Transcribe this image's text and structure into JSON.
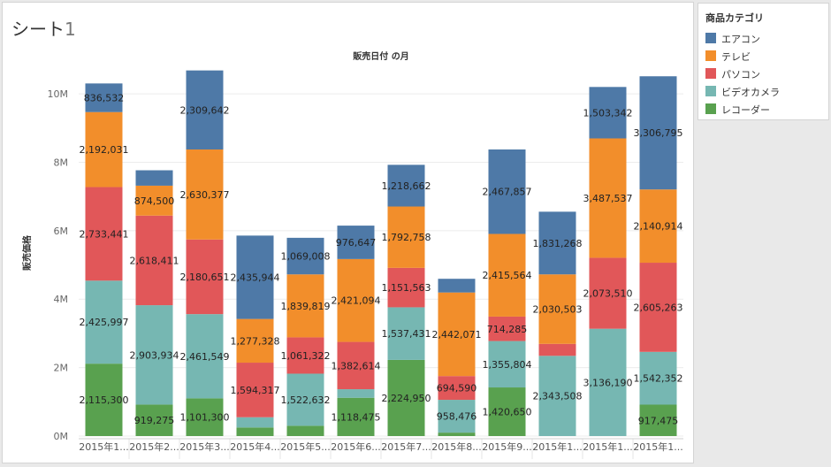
{
  "sheet": {
    "title": "シート",
    "title_number": "1"
  },
  "legend": {
    "title": "商品カテゴリ",
    "items": [
      {
        "label": "エアコン",
        "color": "#4e79a7"
      },
      {
        "label": "テレビ",
        "color": "#f28e2b"
      },
      {
        "label": "パソコン",
        "color": "#e15759"
      },
      {
        "label": "ビデオカメラ",
        "color": "#76b7b2"
      },
      {
        "label": "レコーダー",
        "color": "#59a14f"
      }
    ]
  },
  "chart_data": {
    "type": "bar",
    "stacked": true,
    "title": "販売日付 の月",
    "xlabel": "",
    "ylabel": "販売価格",
    "ylim": [
      0,
      10700000
    ],
    "yticks": [
      {
        "value": 0,
        "label": "0M"
      },
      {
        "value": 2000000,
        "label": "2M"
      },
      {
        "value": 4000000,
        "label": "4M"
      },
      {
        "value": 6000000,
        "label": "6M"
      },
      {
        "value": 8000000,
        "label": "8M"
      },
      {
        "value": 10000000,
        "label": "10M"
      }
    ],
    "categories": [
      "2015年1...",
      "2015年2...",
      "2015年3...",
      "2015年4...",
      "2015年5...",
      "2015年6...",
      "2015年7...",
      "2015年8...",
      "2015年9...",
      "2015年1...",
      "2015年1...",
      "2015年1..."
    ],
    "series": [
      {
        "name": "レコーダー",
        "color": "#59a14f",
        "values": [
          2115300,
          919275,
          1101300,
          250000,
          300000,
          1118475,
          2224950,
          100000,
          1420650,
          0,
          0,
          917475
        ],
        "labels": [
          "2,115,300",
          "919,275",
          "1,101,300",
          "",
          "",
          "1,118,475",
          "2,224,950",
          "",
          "1,420,650",
          "",
          "",
          "917,475"
        ]
      },
      {
        "name": "ビデオカメラ",
        "color": "#76b7b2",
        "values": [
          2425997,
          2903934,
          2461549,
          300000,
          1522632,
          250000,
          1537431,
          958476,
          1355804,
          2343508,
          3136190,
          1542352
        ],
        "labels": [
          "2,425,997",
          "2,903,934",
          "2,461,549",
          "",
          "1,522,632",
          "",
          "1,537,431",
          "958,476",
          "1,355,804",
          "2,343,508",
          "3,136,190",
          "1,542,352"
        ]
      },
      {
        "name": "パソコン",
        "color": "#e15759",
        "values": [
          2733441,
          2618411,
          2180651,
          1594317,
          1061322,
          1382614,
          1151563,
          694590,
          714285,
          350000,
          2073510,
          2605263
        ],
        "labels": [
          "2,733,441",
          "2,618,411",
          "2,180,651",
          "1,594,317",
          "1,061,322",
          "1,382,614",
          "1,151,563",
          "694,590",
          "714,285",
          "",
          "2,073,510",
          "2,605,263"
        ]
      },
      {
        "name": "テレビ",
        "color": "#f28e2b",
        "values": [
          2192031,
          874500,
          2630377,
          1277328,
          1839819,
          2421094,
          1792758,
          2442071,
          2415564,
          2030503,
          3487537,
          2140914
        ],
        "labels": [
          "2,192,031",
          "874,500",
          "2,630,377",
          "1,277,328",
          "1,839,819",
          "2,421,094",
          "1,792,758",
          "2,442,071",
          "2,415,564",
          "2,030,503",
          "3,487,537",
          "2,140,914"
        ]
      },
      {
        "name": "エアコン",
        "color": "#4e79a7",
        "values": [
          836532,
          450000,
          2309642,
          2435944,
          1069008,
          976647,
          1218662,
          400000,
          2467857,
          1831268,
          1503342,
          3306795
        ],
        "labels": [
          "836,532",
          "",
          "2,309,642",
          "2,435,944",
          "1,069,008",
          "976,647",
          "1,218,662",
          "",
          "2,467,857",
          "1,831,268",
          "1,503,342",
          "3,306,795"
        ]
      }
    ]
  }
}
